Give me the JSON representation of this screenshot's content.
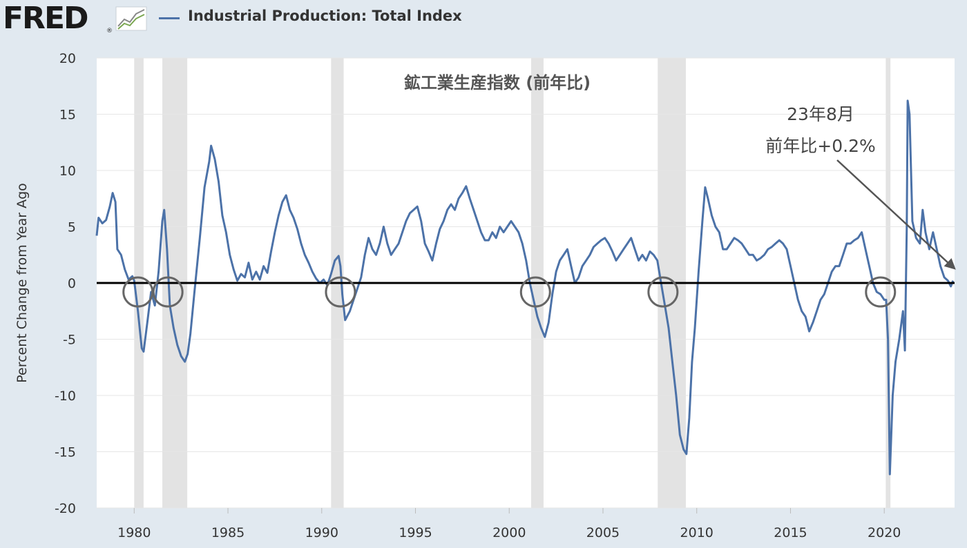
{
  "header": {
    "logo_text": "FRED",
    "logo_mark": "®",
    "series_title": "Industrial Production: Total Index"
  },
  "colors": {
    "series": "#4c72a8",
    "recession": "#e3e3e3",
    "background": "#e1e9f0",
    "plot_background": "#ffffff",
    "zero_line": "#000000",
    "annotation": "#666666"
  },
  "chart_data": {
    "type": "line",
    "title": "鉱工業生産指数 (前年比)",
    "ylabel": "Percent Change from Year Ago",
    "xlabel": "",
    "xlim": [
      1978.0,
      2023.75
    ],
    "ylim": [
      -20,
      20
    ],
    "x_ticks": [
      1980,
      1985,
      1990,
      1995,
      2000,
      2005,
      2010,
      2015,
      2020
    ],
    "y_ticks": [
      20,
      15,
      10,
      5,
      0,
      -5,
      -10,
      -15,
      -20
    ],
    "grid": "horizontal",
    "recessions": [
      [
        1980.0,
        1980.5
      ],
      [
        1981.5,
        1982.83
      ],
      [
        1990.5,
        1991.17
      ],
      [
        2001.17,
        2001.83
      ],
      [
        2007.92,
        2009.42
      ],
      [
        2020.08,
        2020.33
      ]
    ],
    "circled_points": [
      [
        1980.2,
        -0.8
      ],
      [
        1981.8,
        -0.8
      ],
      [
        1991.0,
        -0.8
      ],
      [
        2001.4,
        -0.8
      ],
      [
        2008.2,
        -0.8
      ],
      [
        2019.8,
        -0.8
      ]
    ],
    "annotation": {
      "line1": "23年8月",
      "line2": "前年比+0.2%",
      "point": [
        2023.67,
        0.2
      ]
    },
    "series": [
      {
        "name": "Industrial Production: Total Index",
        "points": [
          [
            1978.0,
            4.2
          ],
          [
            1978.1,
            5.8
          ],
          [
            1978.3,
            5.3
          ],
          [
            1978.5,
            5.6
          ],
          [
            1978.7,
            6.8
          ],
          [
            1978.85,
            8.0
          ],
          [
            1979.0,
            7.2
          ],
          [
            1979.1,
            3.0
          ],
          [
            1979.3,
            2.5
          ],
          [
            1979.5,
            1.2
          ],
          [
            1979.7,
            0.3
          ],
          [
            1979.9,
            0.6
          ],
          [
            1980.0,
            0.2
          ],
          [
            1980.2,
            -2.5
          ],
          [
            1980.4,
            -5.8
          ],
          [
            1980.5,
            -6.1
          ],
          [
            1980.7,
            -3.5
          ],
          [
            1980.9,
            -0.8
          ],
          [
            1981.1,
            -2.0
          ],
          [
            1981.3,
            1.0
          ],
          [
            1981.5,
            5.5
          ],
          [
            1981.6,
            6.5
          ],
          [
            1981.75,
            3.0
          ],
          [
            1981.9,
            -2.0
          ],
          [
            1982.1,
            -4.0
          ],
          [
            1982.3,
            -5.5
          ],
          [
            1982.5,
            -6.5
          ],
          [
            1982.7,
            -7.0
          ],
          [
            1982.85,
            -6.3
          ],
          [
            1983.0,
            -4.5
          ],
          [
            1983.2,
            -1.0
          ],
          [
            1983.5,
            4.0
          ],
          [
            1983.75,
            8.5
          ],
          [
            1984.0,
            10.8
          ],
          [
            1984.1,
            12.2
          ],
          [
            1984.3,
            11.0
          ],
          [
            1984.5,
            9.0
          ],
          [
            1984.7,
            6.0
          ],
          [
            1984.9,
            4.5
          ],
          [
            1985.1,
            2.5
          ],
          [
            1985.3,
            1.2
          ],
          [
            1985.5,
            0.2
          ],
          [
            1985.7,
            0.8
          ],
          [
            1985.9,
            0.5
          ],
          [
            1986.1,
            1.8
          ],
          [
            1986.3,
            0.3
          ],
          [
            1986.5,
            1.0
          ],
          [
            1986.7,
            0.3
          ],
          [
            1986.9,
            1.5
          ],
          [
            1987.1,
            0.9
          ],
          [
            1987.3,
            2.8
          ],
          [
            1987.5,
            4.5
          ],
          [
            1987.7,
            6.0
          ],
          [
            1987.9,
            7.2
          ],
          [
            1988.1,
            7.8
          ],
          [
            1988.3,
            6.5
          ],
          [
            1988.5,
            5.8
          ],
          [
            1988.7,
            4.8
          ],
          [
            1988.9,
            3.5
          ],
          [
            1989.1,
            2.5
          ],
          [
            1989.3,
            1.8
          ],
          [
            1989.5,
            1.0
          ],
          [
            1989.7,
            0.4
          ],
          [
            1989.9,
            0.0
          ],
          [
            1990.1,
            0.3
          ],
          [
            1990.3,
            -0.2
          ],
          [
            1990.5,
            0.8
          ],
          [
            1990.7,
            2.0
          ],
          [
            1990.9,
            2.4
          ],
          [
            1991.0,
            1.5
          ],
          [
            1991.1,
            -1.0
          ],
          [
            1991.25,
            -3.3
          ],
          [
            1991.5,
            -2.5
          ],
          [
            1991.7,
            -1.5
          ],
          [
            1991.9,
            -0.5
          ],
          [
            1992.1,
            0.5
          ],
          [
            1992.3,
            2.5
          ],
          [
            1992.5,
            4.0
          ],
          [
            1992.7,
            3.0
          ],
          [
            1992.9,
            2.5
          ],
          [
            1993.1,
            3.5
          ],
          [
            1993.3,
            5.0
          ],
          [
            1993.5,
            3.5
          ],
          [
            1993.7,
            2.5
          ],
          [
            1993.9,
            3.0
          ],
          [
            1994.1,
            3.5
          ],
          [
            1994.3,
            4.5
          ],
          [
            1994.5,
            5.5
          ],
          [
            1994.7,
            6.2
          ],
          [
            1994.9,
            6.5
          ],
          [
            1995.1,
            6.8
          ],
          [
            1995.3,
            5.5
          ],
          [
            1995.5,
            3.5
          ],
          [
            1995.7,
            2.8
          ],
          [
            1995.9,
            2.0
          ],
          [
            1996.1,
            3.5
          ],
          [
            1996.3,
            4.8
          ],
          [
            1996.5,
            5.5
          ],
          [
            1996.7,
            6.5
          ],
          [
            1996.9,
            7.0
          ],
          [
            1997.1,
            6.5
          ],
          [
            1997.3,
            7.5
          ],
          [
            1997.5,
            8.0
          ],
          [
            1997.7,
            8.6
          ],
          [
            1997.9,
            7.5
          ],
          [
            1998.1,
            6.5
          ],
          [
            1998.3,
            5.5
          ],
          [
            1998.5,
            4.5
          ],
          [
            1998.7,
            3.8
          ],
          [
            1998.9,
            3.8
          ],
          [
            1999.1,
            4.5
          ],
          [
            1999.3,
            4.0
          ],
          [
            1999.5,
            5.0
          ],
          [
            1999.7,
            4.5
          ],
          [
            1999.9,
            5.0
          ],
          [
            2000.1,
            5.5
          ],
          [
            2000.3,
            5.0
          ],
          [
            2000.5,
            4.5
          ],
          [
            2000.7,
            3.5
          ],
          [
            2000.9,
            2.0
          ],
          [
            2001.1,
            0.0
          ],
          [
            2001.3,
            -1.5
          ],
          [
            2001.5,
            -3.0
          ],
          [
            2001.7,
            -4.0
          ],
          [
            2001.9,
            -4.8
          ],
          [
            2002.1,
            -3.5
          ],
          [
            2002.3,
            -1.0
          ],
          [
            2002.5,
            1.0
          ],
          [
            2002.7,
            2.0
          ],
          [
            2002.9,
            2.5
          ],
          [
            2003.1,
            3.0
          ],
          [
            2003.3,
            1.5
          ],
          [
            2003.5,
            0.0
          ],
          [
            2003.7,
            0.5
          ],
          [
            2003.9,
            1.5
          ],
          [
            2004.1,
            2.0
          ],
          [
            2004.3,
            2.5
          ],
          [
            2004.5,
            3.2
          ],
          [
            2004.7,
            3.5
          ],
          [
            2004.9,
            3.8
          ],
          [
            2005.1,
            4.0
          ],
          [
            2005.3,
            3.5
          ],
          [
            2005.5,
            2.8
          ],
          [
            2005.7,
            2.0
          ],
          [
            2005.9,
            2.5
          ],
          [
            2006.1,
            3.0
          ],
          [
            2006.3,
            3.5
          ],
          [
            2006.5,
            4.0
          ],
          [
            2006.7,
            3.0
          ],
          [
            2006.9,
            2.0
          ],
          [
            2007.1,
            2.5
          ],
          [
            2007.3,
            2.0
          ],
          [
            2007.5,
            2.8
          ],
          [
            2007.7,
            2.5
          ],
          [
            2007.9,
            2.0
          ],
          [
            2008.1,
            0.0
          ],
          [
            2008.3,
            -2.0
          ],
          [
            2008.5,
            -4.0
          ],
          [
            2008.7,
            -7.0
          ],
          [
            2008.9,
            -10.0
          ],
          [
            2009.1,
            -13.5
          ],
          [
            2009.3,
            -14.8
          ],
          [
            2009.45,
            -15.2
          ],
          [
            2009.6,
            -12.0
          ],
          [
            2009.75,
            -7.0
          ],
          [
            2009.9,
            -4.0
          ],
          [
            2010.1,
            1.0
          ],
          [
            2010.3,
            5.5
          ],
          [
            2010.45,
            8.5
          ],
          [
            2010.6,
            7.5
          ],
          [
            2010.8,
            6.0
          ],
          [
            2011.0,
            5.0
          ],
          [
            2011.2,
            4.5
          ],
          [
            2011.4,
            3.0
          ],
          [
            2011.6,
            3.0
          ],
          [
            2011.8,
            3.5
          ],
          [
            2012.0,
            4.0
          ],
          [
            2012.2,
            3.8
          ],
          [
            2012.4,
            3.5
          ],
          [
            2012.6,
            3.0
          ],
          [
            2012.8,
            2.5
          ],
          [
            2013.0,
            2.5
          ],
          [
            2013.2,
            2.0
          ],
          [
            2013.4,
            2.2
          ],
          [
            2013.6,
            2.5
          ],
          [
            2013.8,
            3.0
          ],
          [
            2014.0,
            3.2
          ],
          [
            2014.2,
            3.5
          ],
          [
            2014.4,
            3.8
          ],
          [
            2014.6,
            3.5
          ],
          [
            2014.8,
            3.0
          ],
          [
            2015.0,
            1.5
          ],
          [
            2015.2,
            0.0
          ],
          [
            2015.4,
            -1.5
          ],
          [
            2015.6,
            -2.5
          ],
          [
            2015.8,
            -3.0
          ],
          [
            2016.0,
            -4.3
          ],
          [
            2016.2,
            -3.5
          ],
          [
            2016.4,
            -2.5
          ],
          [
            2016.6,
            -1.5
          ],
          [
            2016.8,
            -1.0
          ],
          [
            2017.0,
            0.0
          ],
          [
            2017.2,
            1.0
          ],
          [
            2017.4,
            1.5
          ],
          [
            2017.6,
            1.5
          ],
          [
            2017.8,
            2.5
          ],
          [
            2018.0,
            3.5
          ],
          [
            2018.2,
            3.5
          ],
          [
            2018.4,
            3.8
          ],
          [
            2018.6,
            4.0
          ],
          [
            2018.8,
            4.5
          ],
          [
            2019.0,
            3.0
          ],
          [
            2019.2,
            1.5
          ],
          [
            2019.4,
            0.0
          ],
          [
            2019.6,
            -0.8
          ],
          [
            2019.8,
            -1.0
          ],
          [
            2020.0,
            -1.5
          ],
          [
            2020.1,
            -1.5
          ],
          [
            2020.2,
            -5.0
          ],
          [
            2020.3,
            -17.0
          ],
          [
            2020.45,
            -10.0
          ],
          [
            2020.6,
            -7.0
          ],
          [
            2020.8,
            -5.0
          ],
          [
            2021.0,
            -2.5
          ],
          [
            2021.1,
            -6.0
          ],
          [
            2021.2,
            5.0
          ],
          [
            2021.25,
            16.2
          ],
          [
            2021.35,
            15.0
          ],
          [
            2021.5,
            5.5
          ],
          [
            2021.7,
            4.0
          ],
          [
            2021.9,
            3.5
          ],
          [
            2022.05,
            6.5
          ],
          [
            2022.2,
            4.5
          ],
          [
            2022.4,
            3.0
          ],
          [
            2022.6,
            4.5
          ],
          [
            2022.8,
            3.0
          ],
          [
            2023.0,
            1.5
          ],
          [
            2023.2,
            0.5
          ],
          [
            2023.4,
            0.2
          ],
          [
            2023.55,
            -0.3
          ],
          [
            2023.67,
            0.2
          ]
        ]
      }
    ]
  }
}
